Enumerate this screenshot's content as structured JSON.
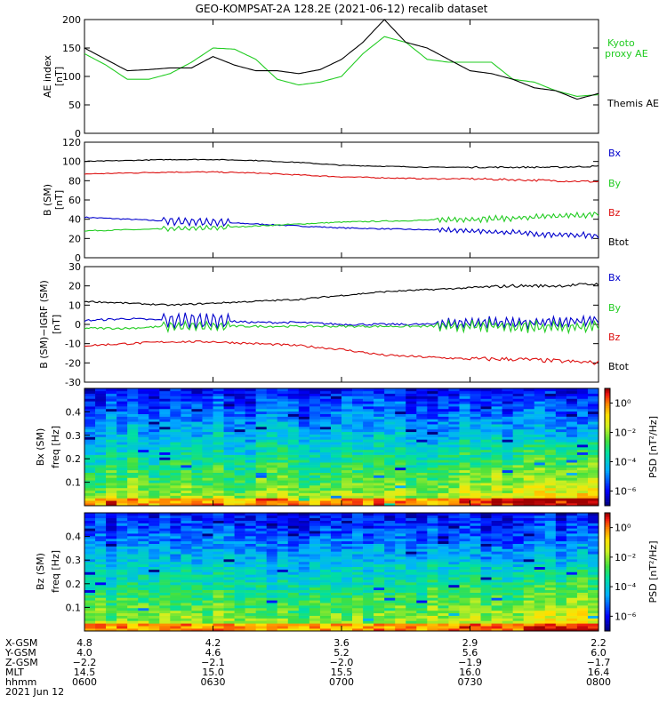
{
  "title": "GEO-KOMPSAT-2A 128.2E (2021-06-12) recalib dataset",
  "chart_data": [
    {
      "type": "line",
      "ylabel_line1": "AE index",
      "ylabel_line2": "[nT]",
      "ylim": [
        0,
        200
      ],
      "yticks": [
        0,
        50,
        100,
        150,
        200
      ],
      "x": [
        "06:00",
        "06:05",
        "06:10",
        "06:15",
        "06:20",
        "06:25",
        "06:30",
        "06:35",
        "06:40",
        "06:45",
        "06:50",
        "06:55",
        "07:00",
        "07:05",
        "07:10",
        "07:15",
        "07:20",
        "07:25",
        "07:30",
        "07:35",
        "07:40",
        "07:45",
        "07:50",
        "07:55",
        "08:00"
      ],
      "series": [
        {
          "name": "Kyoto proxy AE",
          "name_line1": "Kyoto",
          "name_line2": "proxy AE",
          "color": "#22cc22",
          "values": [
            140,
            120,
            95,
            95,
            105,
            125,
            150,
            148,
            130,
            95,
            85,
            90,
            100,
            140,
            170,
            160,
            130,
            125,
            125,
            125,
            95,
            90,
            75,
            65,
            68
          ]
        },
        {
          "name": "Themis AE",
          "color": "#000000",
          "values": [
            150,
            130,
            110,
            112,
            115,
            115,
            135,
            120,
            110,
            110,
            105,
            112,
            130,
            160,
            200,
            160,
            150,
            130,
            110,
            105,
            95,
            80,
            75,
            60,
            70
          ]
        }
      ]
    },
    {
      "type": "line",
      "ylabel_line1": "B (SM)",
      "ylabel_line2": "[nT]",
      "ylim": [
        0,
        120
      ],
      "yticks": [
        0,
        20,
        40,
        60,
        80,
        100,
        120
      ],
      "x": [
        "06:00",
        "06:10",
        "06:20",
        "06:30",
        "06:40",
        "06:50",
        "07:00",
        "07:10",
        "07:20",
        "07:30",
        "07:40",
        "07:50",
        "08:00"
      ],
      "series": [
        {
          "name": "Bx",
          "color": "#0000cc",
          "values": [
            42,
            40,
            38,
            37,
            35,
            33,
            31,
            30,
            29,
            28,
            26,
            24,
            23
          ]
        },
        {
          "name": "By",
          "color": "#22cc22",
          "values": [
            28,
            29,
            30,
            31,
            33,
            35,
            37,
            38,
            39,
            40,
            41,
            43,
            45
          ]
        },
        {
          "name": "Bz",
          "color": "#dd1111",
          "values": [
            87,
            88,
            89,
            89,
            88,
            86,
            84,
            83,
            82,
            82,
            81,
            80,
            79
          ]
        },
        {
          "name": "Btot",
          "color": "#000000",
          "values": [
            100,
            101,
            102,
            102,
            101,
            99,
            96,
            95,
            94,
            94,
            94,
            94,
            95
          ]
        }
      ]
    },
    {
      "type": "line",
      "ylabel_line1": "B (SM)−IGRF (SM)",
      "ylabel_line2": "[nT]",
      "ylim": [
        -30,
        30
      ],
      "yticks": [
        -30,
        -20,
        -10,
        0,
        10,
        20,
        30
      ],
      "x": [
        "06:00",
        "06:10",
        "06:20",
        "06:30",
        "06:40",
        "06:50",
        "07:00",
        "07:10",
        "07:20",
        "07:30",
        "07:40",
        "07:50",
        "08:00"
      ],
      "series": [
        {
          "name": "Bx",
          "color": "#0000cc",
          "values": [
            2,
            3,
            2,
            2,
            1,
            1,
            0,
            0,
            0,
            1,
            1,
            1,
            2
          ]
        },
        {
          "name": "By",
          "color": "#22cc22",
          "values": [
            -2,
            -2,
            -1,
            -1,
            -1,
            -1,
            -1,
            -1,
            -1,
            -1,
            -1,
            -1,
            -1
          ]
        },
        {
          "name": "Bz",
          "color": "#dd1111",
          "values": [
            -11,
            -10,
            -9,
            -9,
            -10,
            -11,
            -13,
            -16,
            -17,
            -18,
            -18,
            -19,
            -20
          ]
        },
        {
          "name": "Btot",
          "color": "#000000",
          "values": [
            12,
            11,
            10,
            11,
            12,
            13,
            15,
            17,
            18,
            19,
            20,
            20,
            21
          ]
        }
      ]
    },
    {
      "type": "heatmap",
      "ylabel_line1": "Bx (SM)",
      "ylabel_line2": "freq [Hz]",
      "yticks": [
        0.1,
        0.2,
        0.3,
        0.4
      ],
      "ylim": [
        0,
        0.5
      ],
      "colorbar_label": "PSD [nT²/Hz]",
      "colorbar_ticks": [
        "10⁰",
        "10⁻²",
        "10⁻⁴",
        "10⁻⁶"
      ],
      "colorbar_range_log10": [
        -7,
        1
      ]
    },
    {
      "type": "heatmap",
      "ylabel_line1": "Bz (SM)",
      "ylabel_line2": "freq [Hz]",
      "yticks": [
        0.1,
        0.2,
        0.3,
        0.4
      ],
      "ylim": [
        0,
        0.5
      ],
      "colorbar_label": "PSD [nT²/Hz]",
      "colorbar_ticks": [
        "10⁰",
        "10⁻²",
        "10⁻⁴",
        "10⁻⁶"
      ],
      "colorbar_range_log10": [
        -7,
        1
      ]
    }
  ],
  "ephemeris": {
    "row_labels": [
      "X-GSM",
      "Y-GSM",
      "Z-GSM",
      "MLT",
      "hhmm",
      "2021 Jun 12"
    ],
    "columns": [
      {
        "values": [
          "4.8",
          "4.0",
          "−2.2",
          "14.5",
          "0600"
        ]
      },
      {
        "values": [
          "4.2",
          "4.6",
          "−2.1",
          "15.0",
          "0630"
        ]
      },
      {
        "values": [
          "3.6",
          "5.2",
          "−2.0",
          "15.5",
          "0700"
        ]
      },
      {
        "values": [
          "2.9",
          "5.6",
          "−1.9",
          "16.0",
          "0730"
        ]
      },
      {
        "values": [
          "2.2",
          "6.0",
          "−1.7",
          "16.4",
          "0800"
        ]
      }
    ]
  }
}
